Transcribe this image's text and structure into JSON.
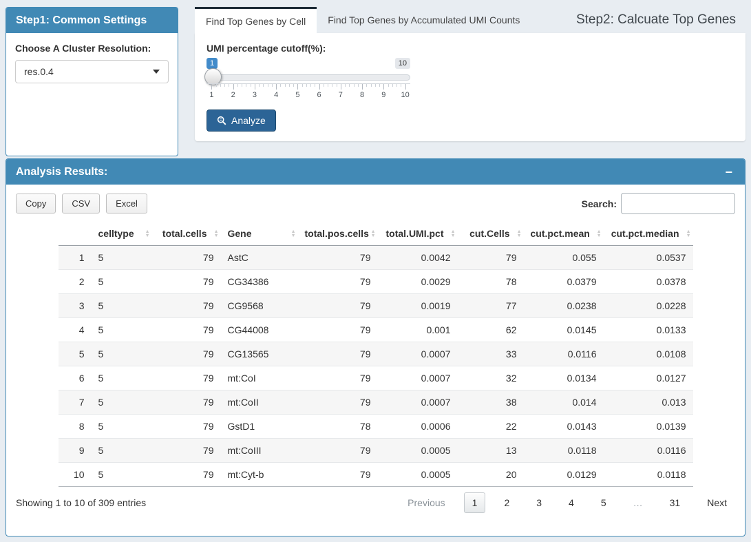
{
  "colors": {
    "panel_header_blue": "#4189b5",
    "active_tab_border": "#1c2a36",
    "analyze_button_blue": "#2c6496",
    "slider_value_blue": "#428bca",
    "page_background": "#e8edf2"
  },
  "icons": {
    "sort_asc": "▲",
    "sort_desc": "▼",
    "caret_down": "caret-down",
    "search": "magnifier",
    "collapse_minus": "−"
  },
  "step1": {
    "title": "Step1: Common Settings",
    "cluster_label": "Choose A Cluster Resolution:",
    "cluster_value": "res.0.4"
  },
  "step2": {
    "title": "Step2: Calcuate Top Genes",
    "tabs": [
      {
        "label": "Find Top Genes by Cell",
        "active": true
      },
      {
        "label": "Find Top Genes by Accumulated UMI Counts",
        "active": false
      }
    ],
    "slider": {
      "label": "UMI percentage cutoff(%):",
      "value": "1",
      "max_label": "10",
      "min": 1,
      "max": 10,
      "ticks": [
        "1",
        "2",
        "3",
        "4",
        "5",
        "6",
        "7",
        "8",
        "9",
        "10"
      ]
    },
    "analyze_label": "Analyze"
  },
  "results": {
    "title": "Analysis Results:",
    "collapse_icon": "−",
    "export_buttons": [
      "Copy",
      "CSV",
      "Excel"
    ],
    "search_label": "Search:",
    "search_value": "",
    "table": {
      "columns": [
        "",
        "celltype",
        "total.cells",
        "Gene",
        "total.pos.cells",
        "total.UMI.pct",
        "cut.Cells",
        "cut.pct.mean",
        "cut.pct.median"
      ],
      "alignments": [
        "right",
        "left",
        "right",
        "left",
        "right",
        "right",
        "right",
        "right",
        "right"
      ],
      "rows": [
        [
          "1",
          "5",
          "79",
          "AstC",
          "79",
          "0.0042",
          "79",
          "0.055",
          "0.0537"
        ],
        [
          "2",
          "5",
          "79",
          "CG34386",
          "79",
          "0.0029",
          "78",
          "0.0379",
          "0.0378"
        ],
        [
          "3",
          "5",
          "79",
          "CG9568",
          "79",
          "0.0019",
          "77",
          "0.0238",
          "0.0228"
        ],
        [
          "4",
          "5",
          "79",
          "CG44008",
          "79",
          "0.001",
          "62",
          "0.0145",
          "0.0133"
        ],
        [
          "5",
          "5",
          "79",
          "CG13565",
          "79",
          "0.0007",
          "33",
          "0.0116",
          "0.0108"
        ],
        [
          "6",
          "5",
          "79",
          "mt:CoI",
          "79",
          "0.0007",
          "32",
          "0.0134",
          "0.0127"
        ],
        [
          "7",
          "5",
          "79",
          "mt:CoII",
          "79",
          "0.0007",
          "38",
          "0.014",
          "0.013"
        ],
        [
          "8",
          "5",
          "79",
          "GstD1",
          "78",
          "0.0006",
          "22",
          "0.0143",
          "0.0139"
        ],
        [
          "9",
          "5",
          "79",
          "mt:CoIII",
          "79",
          "0.0005",
          "13",
          "0.0118",
          "0.0116"
        ],
        [
          "10",
          "5",
          "79",
          "mt:Cyt-b",
          "79",
          "0.0005",
          "20",
          "0.0129",
          "0.0118"
        ]
      ]
    },
    "info": "Showing 1 to 10 of 309 entries",
    "pagination": {
      "previous": "Previous",
      "pages": [
        "1",
        "2",
        "3",
        "4",
        "5",
        "…",
        "31"
      ],
      "active_page": "1",
      "next": "Next"
    }
  }
}
